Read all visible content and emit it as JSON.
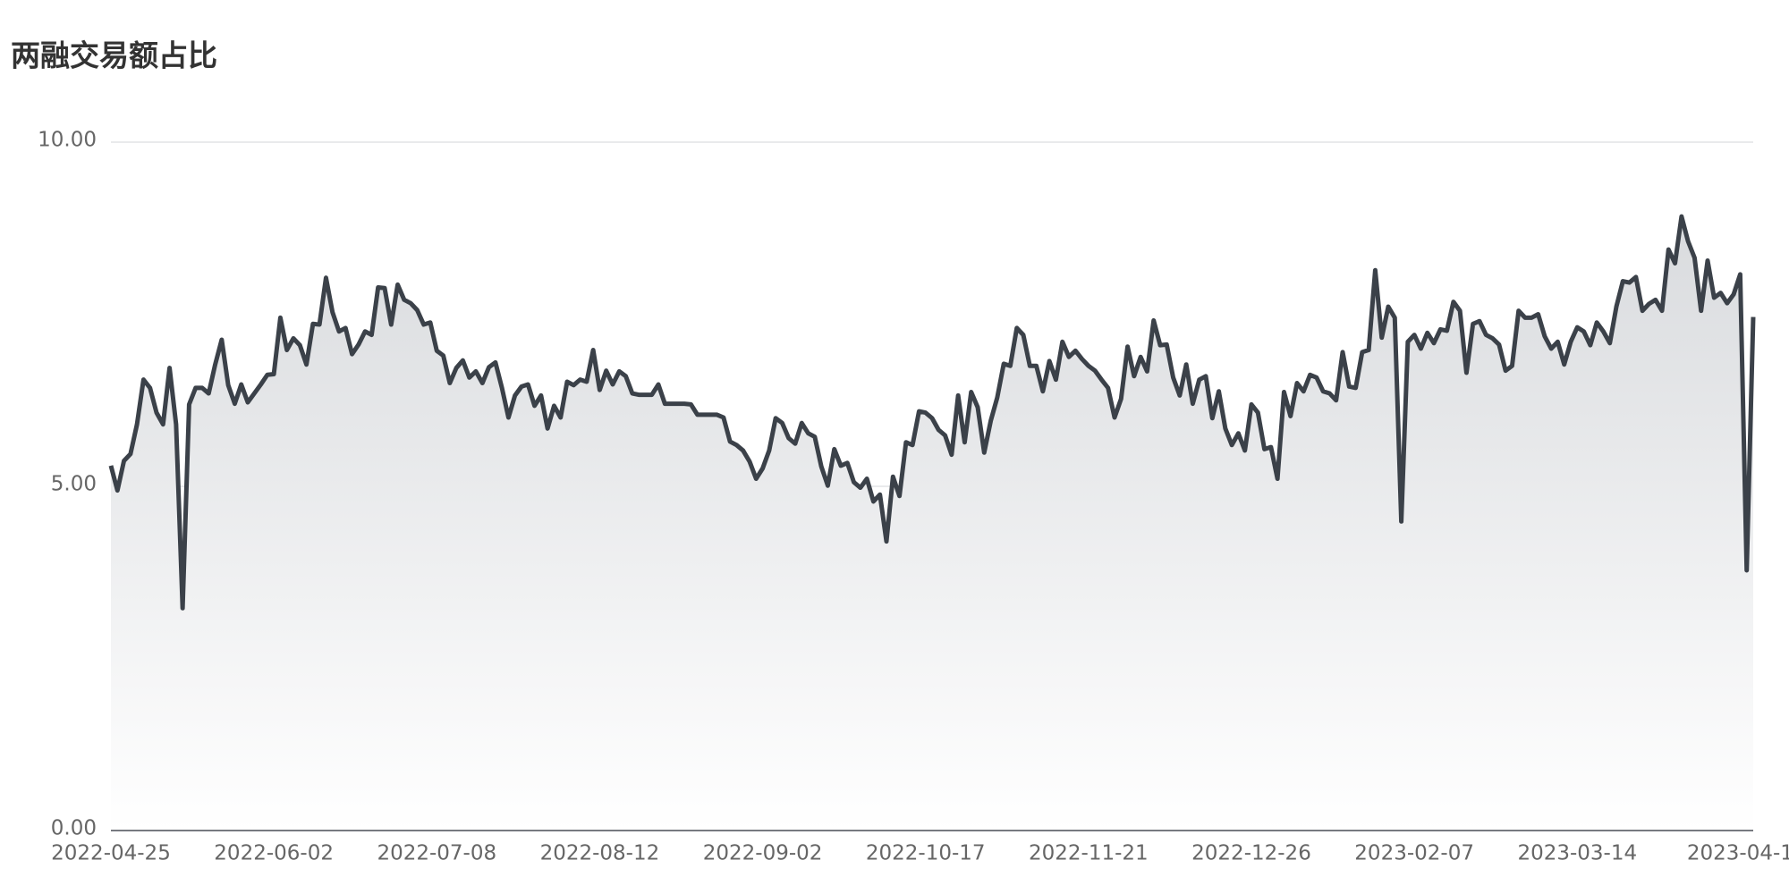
{
  "chart_data": {
    "type": "area",
    "title": "两融交易额占比",
    "categories": [
      "2022-04-25",
      null,
      null,
      null,
      null,
      null,
      null,
      null,
      null,
      null,
      null,
      null,
      null,
      null,
      null,
      null,
      null,
      null,
      null,
      null,
      null,
      null,
      null,
      null,
      null,
      "2022-06-02",
      null,
      null,
      null,
      null,
      null,
      null,
      null,
      null,
      null,
      null,
      null,
      null,
      null,
      null,
      null,
      null,
      null,
      null,
      null,
      null,
      null,
      null,
      null,
      null,
      "2022-07-08",
      null,
      null,
      null,
      null,
      null,
      null,
      null,
      null,
      null,
      null,
      null,
      null,
      null,
      null,
      null,
      null,
      null,
      null,
      null,
      null,
      null,
      null,
      null,
      null,
      "2022-08-12",
      null,
      null,
      null,
      null,
      null,
      null,
      null,
      null,
      null,
      null,
      null,
      null,
      null,
      null,
      null,
      null,
      null,
      null,
      null,
      null,
      null,
      null,
      null,
      null,
      "2022-09-02",
      null,
      null,
      null,
      null,
      null,
      null,
      null,
      null,
      null,
      null,
      null,
      null,
      null,
      null,
      null,
      null,
      null,
      null,
      null,
      null,
      null,
      null,
      null,
      null,
      "2022-10-17",
      null,
      null,
      null,
      null,
      null,
      null,
      null,
      null,
      null,
      null,
      null,
      null,
      null,
      null,
      null,
      null,
      null,
      null,
      null,
      null,
      null,
      null,
      null,
      null,
      "2022-11-21",
      null,
      null,
      null,
      null,
      null,
      null,
      null,
      null,
      null,
      null,
      null,
      null,
      null,
      null,
      null,
      null,
      null,
      null,
      null,
      null,
      null,
      null,
      null,
      null,
      "2022-12-26",
      null,
      null,
      null,
      null,
      null,
      null,
      null,
      null,
      null,
      null,
      null,
      null,
      null,
      null,
      null,
      null,
      null,
      null,
      null,
      null,
      null,
      null,
      null,
      null,
      "2023-02-07",
      null,
      null,
      null,
      null,
      null,
      null,
      null,
      null,
      null,
      null,
      null,
      null,
      null,
      null,
      null,
      null,
      null,
      null,
      null,
      null,
      null,
      null,
      null,
      null,
      "2023-03-14",
      null,
      null,
      null,
      null,
      null,
      null,
      null,
      null,
      null,
      null,
      null,
      null,
      null,
      null,
      null,
      null,
      null,
      null,
      null,
      null,
      null,
      null,
      null,
      null,
      "2023-04-1",
      null,
      null
    ],
    "values": [
      5.3,
      4.94,
      5.37,
      5.47,
      5.9,
      6.55,
      6.43,
      6.07,
      5.9,
      6.72,
      5.9,
      3.23,
      6.19,
      6.43,
      6.43,
      6.35,
      6.77,
      7.13,
      6.47,
      6.2,
      6.48,
      6.22,
      6.35,
      6.48,
      6.62,
      6.63,
      7.45,
      6.98,
      7.15,
      7.05,
      6.77,
      7.36,
      7.35,
      8.03,
      7.53,
      7.25,
      7.3,
      6.92,
      7.06,
      7.25,
      7.2,
      7.89,
      7.88,
      7.35,
      7.93,
      7.71,
      7.66,
      7.56,
      7.35,
      7.38,
      6.97,
      6.9,
      6.5,
      6.72,
      6.83,
      6.58,
      6.67,
      6.5,
      6.73,
      6.8,
      6.43,
      6.0,
      6.32,
      6.45,
      6.48,
      6.17,
      6.32,
      5.84,
      6.17,
      6.0,
      6.52,
      6.47,
      6.55,
      6.52,
      6.98,
      6.4,
      6.68,
      6.48,
      6.67,
      6.6,
      6.35,
      6.33,
      6.33,
      6.33,
      6.48,
      6.2,
      6.2,
      6.2,
      6.2,
      6.19,
      6.04,
      6.04,
      6.04,
      6.04,
      6.0,
      5.65,
      5.6,
      5.52,
      5.36,
      5.11,
      5.26,
      5.52,
      5.99,
      5.92,
      5.7,
      5.62,
      5.92,
      5.77,
      5.72,
      5.29,
      5.01,
      5.54,
      5.3,
      5.34,
      5.06,
      4.98,
      5.11,
      4.78,
      4.88,
      4.2,
      5.14,
      4.86,
      5.64,
      5.6,
      6.09,
      6.07,
      5.99,
      5.82,
      5.74,
      5.46,
      6.32,
      5.64,
      6.37,
      6.15,
      5.49,
      5.95,
      6.29,
      6.78,
      6.75,
      7.3,
      7.2,
      6.75,
      6.75,
      6.38,
      6.82,
      6.55,
      7.1,
      6.88,
      6.97,
      6.85,
      6.75,
      6.68,
      6.55,
      6.43,
      6.0,
      6.27,
      7.03,
      6.6,
      6.88,
      6.67,
      7.41,
      7.05,
      7.06,
      6.58,
      6.32,
      6.77,
      6.2,
      6.55,
      6.6,
      5.99,
      6.38,
      5.84,
      5.6,
      5.77,
      5.52,
      6.19,
      6.07,
      5.54,
      5.57,
      5.11,
      6.37,
      6.02,
      6.5,
      6.38,
      6.62,
      6.58,
      6.38,
      6.35,
      6.25,
      6.95,
      6.45,
      6.43,
      6.95,
      6.98,
      8.14,
      7.16,
      7.61,
      7.45,
      4.49,
      7.1,
      7.2,
      7.0,
      7.23,
      7.08,
      7.28,
      7.26,
      7.68,
      7.55,
      6.65,
      7.36,
      7.4,
      7.2,
      7.15,
      7.06,
      6.68,
      6.75,
      7.55,
      7.45,
      7.45,
      7.5,
      7.18,
      7.0,
      7.1,
      6.77,
      7.1,
      7.31,
      7.25,
      7.05,
      7.38,
      7.25,
      7.08,
      7.61,
      7.98,
      7.96,
      8.04,
      7.55,
      7.65,
      7.71,
      7.55,
      8.44,
      8.24,
      8.92,
      8.56,
      8.32,
      7.55,
      8.28,
      7.74,
      7.81,
      7.66,
      7.79,
      8.08,
      3.78,
      7.46
    ],
    "color": "#3b4149",
    "fill_color": "#d9dbde",
    "ylim": [
      0,
      10
    ],
    "yticks": [
      {
        "value": 0,
        "label": "0.00"
      },
      {
        "value": 5,
        "label": "5.00"
      },
      {
        "value": 10,
        "label": "10.00"
      }
    ],
    "grid": true
  }
}
